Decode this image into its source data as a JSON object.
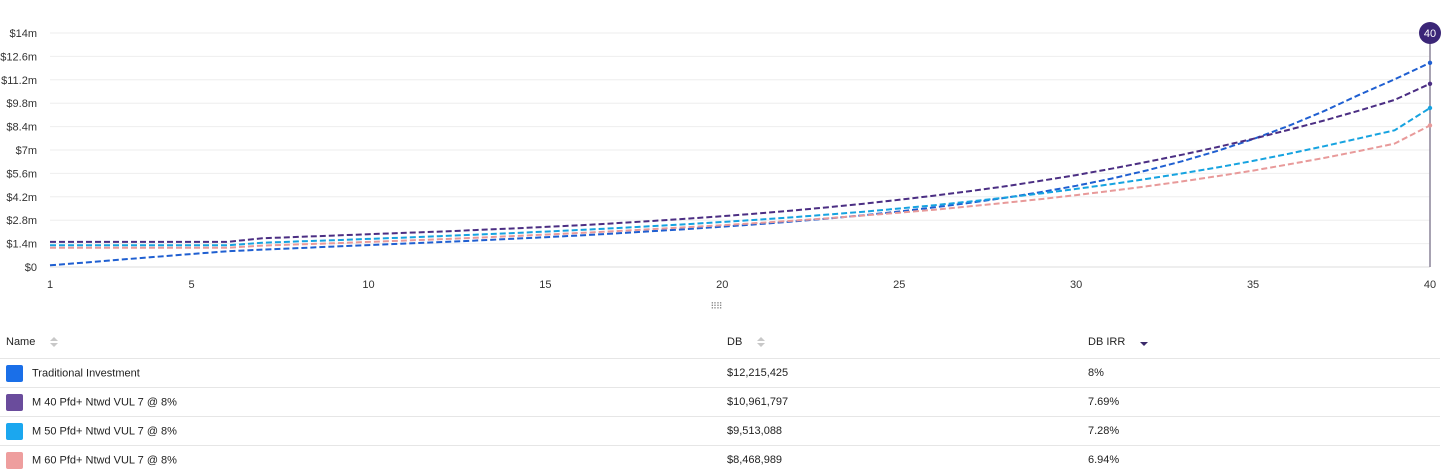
{
  "chart_data": {
    "type": "line",
    "x": [
      1,
      2,
      3,
      4,
      5,
      6,
      7,
      8,
      9,
      10,
      11,
      12,
      13,
      14,
      15,
      16,
      17,
      18,
      19,
      20,
      21,
      22,
      23,
      24,
      25,
      26,
      27,
      28,
      29,
      30,
      31,
      32,
      33,
      34,
      35,
      36,
      37,
      38,
      39,
      40
    ],
    "x_ticks": [
      "1",
      "5",
      "10",
      "15",
      "20",
      "25",
      "30",
      "35",
      "40"
    ],
    "y_ticks": [
      "$0",
      "$1.4m",
      "$2.8m",
      "$4.2m",
      "$5.6m",
      "$7m",
      "$8.4m",
      "$9.8m",
      "$11.2m",
      "$12.6m",
      "$14m"
    ],
    "ylim": [
      0,
      14000000
    ],
    "grid": true,
    "selected_x_label": "40",
    "series": [
      {
        "name": "Traditional Investment",
        "color": "#1f5fd1",
        "values": [
          100000,
          270000,
          440000,
          610000,
          780000,
          940000,
          1040000,
          1130000,
          1220000,
          1310000,
          1400000,
          1490000,
          1580000,
          1680000,
          1780000,
          1890000,
          2010000,
          2140000,
          2270000,
          2410000,
          2560000,
          2720000,
          2900000,
          3100000,
          3320000,
          3570000,
          3840000,
          4140000,
          4480000,
          4860000,
          5290000,
          5780000,
          6330000,
          6950000,
          7650000,
          8440000,
          9320000,
          10300000,
          11230000,
          12215425
        ]
      },
      {
        "name": "M 40 Pfd+ Ntwd VUL 7 @ 8%",
        "color": "#4b2e83",
        "values": [
          1500000,
          1500000,
          1500000,
          1500000,
          1500000,
          1500000,
          1720000,
          1800000,
          1880000,
          1960000,
          2040000,
          2120000,
          2210000,
          2300000,
          2400000,
          2500000,
          2620000,
          2750000,
          2890000,
          3040000,
          3200000,
          3380000,
          3580000,
          3790000,
          4020000,
          4270000,
          4540000,
          4830000,
          5160000,
          5500000,
          5880000,
          6290000,
          6720000,
          7180000,
          7670000,
          8200000,
          8760000,
          9360000,
          10000000,
          10961797
        ]
      },
      {
        "name": "M 50 Pfd+ Ntwd VUL 7 @ 8%",
        "color": "#16a3e0",
        "values": [
          1300000,
          1300000,
          1300000,
          1300000,
          1300000,
          1300000,
          1450000,
          1530000,
          1600000,
          1680000,
          1760000,
          1840000,
          1930000,
          2020000,
          2120000,
          2220000,
          2330000,
          2440000,
          2560000,
          2690000,
          2830000,
          2980000,
          3140000,
          3310000,
          3500000,
          3700000,
          3920000,
          4150000,
          4400000,
          4670000,
          4960000,
          5270000,
          5600000,
          5960000,
          6350000,
          6770000,
          7220000,
          7700000,
          8180000,
          9513088
        ]
      },
      {
        "name": "M 60 Pfd+ Ntwd VUL 7 @ 8%",
        "color": "#e89a9a",
        "values": [
          1150000,
          1150000,
          1150000,
          1150000,
          1150000,
          1150000,
          1280000,
          1350000,
          1420000,
          1500000,
          1580000,
          1660000,
          1750000,
          1840000,
          1940000,
          2040000,
          2150000,
          2260000,
          2380000,
          2500000,
          2630000,
          2770000,
          2920000,
          3080000,
          3250000,
          3430000,
          3630000,
          3840000,
          4060000,
          4300000,
          4560000,
          4830000,
          5120000,
          5440000,
          5770000,
          6140000,
          6520000,
          6940000,
          7380000,
          8468989
        ]
      }
    ]
  },
  "table": {
    "headers": {
      "name": "Name",
      "db": "DB",
      "irr": "DB IRR"
    },
    "rows": [
      {
        "name": "Traditional Investment",
        "color": "#1a6fe8",
        "db": "$12,215,425",
        "irr": "8%"
      },
      {
        "name": "M 40 Pfd+ Ntwd VUL 7 @ 8%",
        "color": "#6a4c9c",
        "db": "$10,961,797",
        "irr": "7.69%"
      },
      {
        "name": "M 50 Pfd+ Ntwd VUL 7 @ 8%",
        "color": "#1ba7ef",
        "db": "$9,513,088",
        "irr": "7.28%"
      },
      {
        "name": "M 60 Pfd+ Ntwd VUL 7 @ 8%",
        "color": "#ee9e9e",
        "db": "$8,468,989",
        "irr": "6.94%"
      }
    ]
  }
}
